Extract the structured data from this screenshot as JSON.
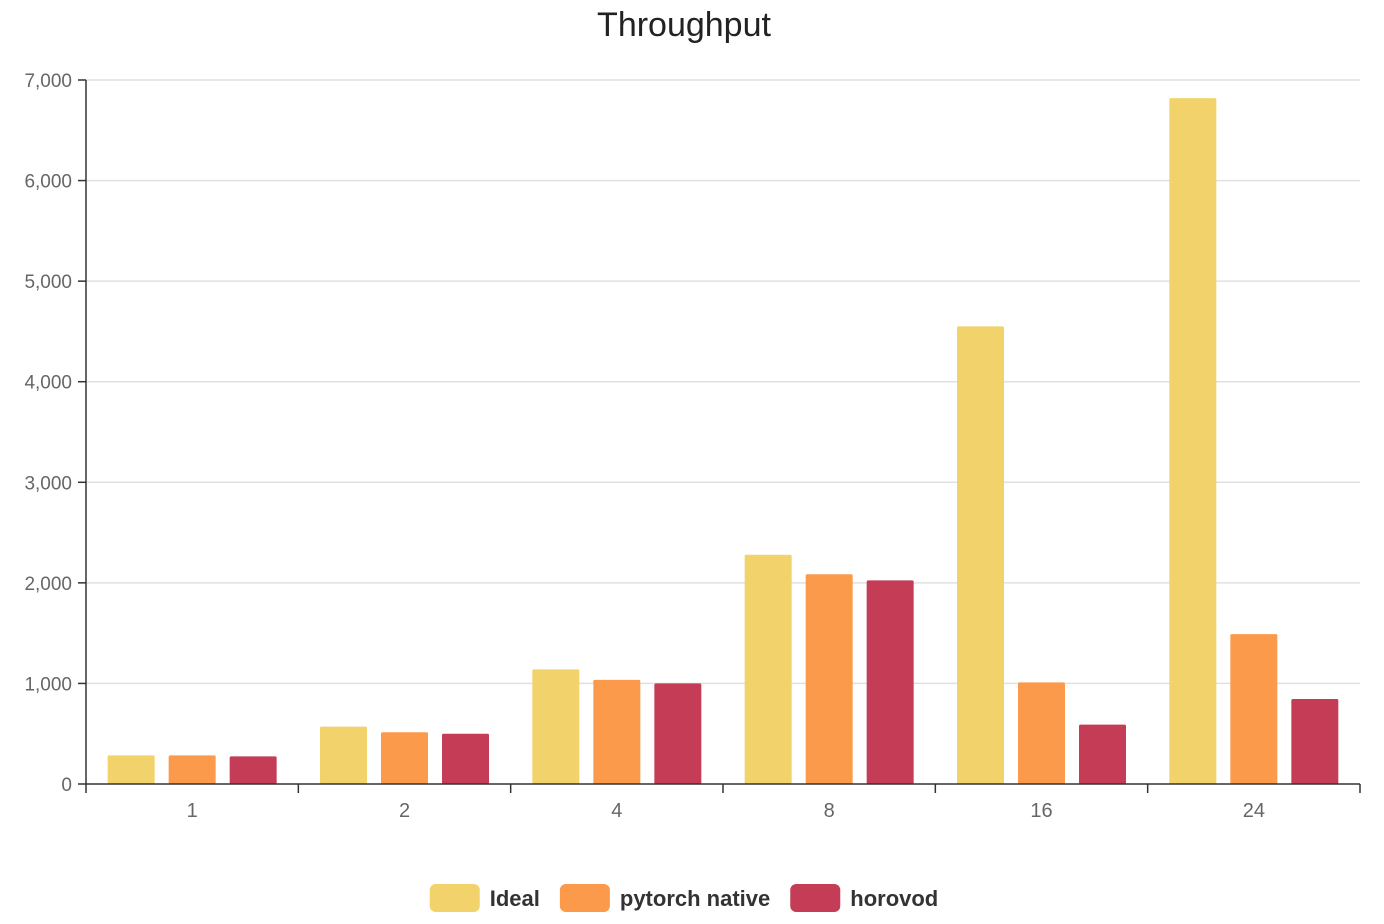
{
  "chart_data": {
    "type": "bar",
    "title": "Throughput",
    "xlabel": "",
    "ylabel": "",
    "categories": [
      "1",
      "2",
      "4",
      "8",
      "16",
      "24"
    ],
    "series": [
      {
        "name": "Ideal",
        "color": "#F2D26A",
        "values": [
          285,
          570,
          1140,
          2280,
          4550,
          6820
        ]
      },
      {
        "name": "pytorch native",
        "color": "#FC9A4B",
        "values": [
          285,
          515,
          1035,
          2085,
          1010,
          1490
        ]
      },
      {
        "name": "horovod",
        "color": "#C43C56",
        "values": [
          275,
          500,
          1000,
          2025,
          590,
          845
        ]
      }
    ],
    "ylim": [
      0,
      7000
    ],
    "yticks": [
      0,
      1000,
      2000,
      3000,
      4000,
      5000,
      6000,
      7000
    ],
    "ytick_labels": [
      "0",
      "1,000",
      "2,000",
      "3,000",
      "4,000",
      "5,000",
      "6,000",
      "7,000"
    ],
    "grid": true,
    "legend_position": "bottom-center"
  }
}
